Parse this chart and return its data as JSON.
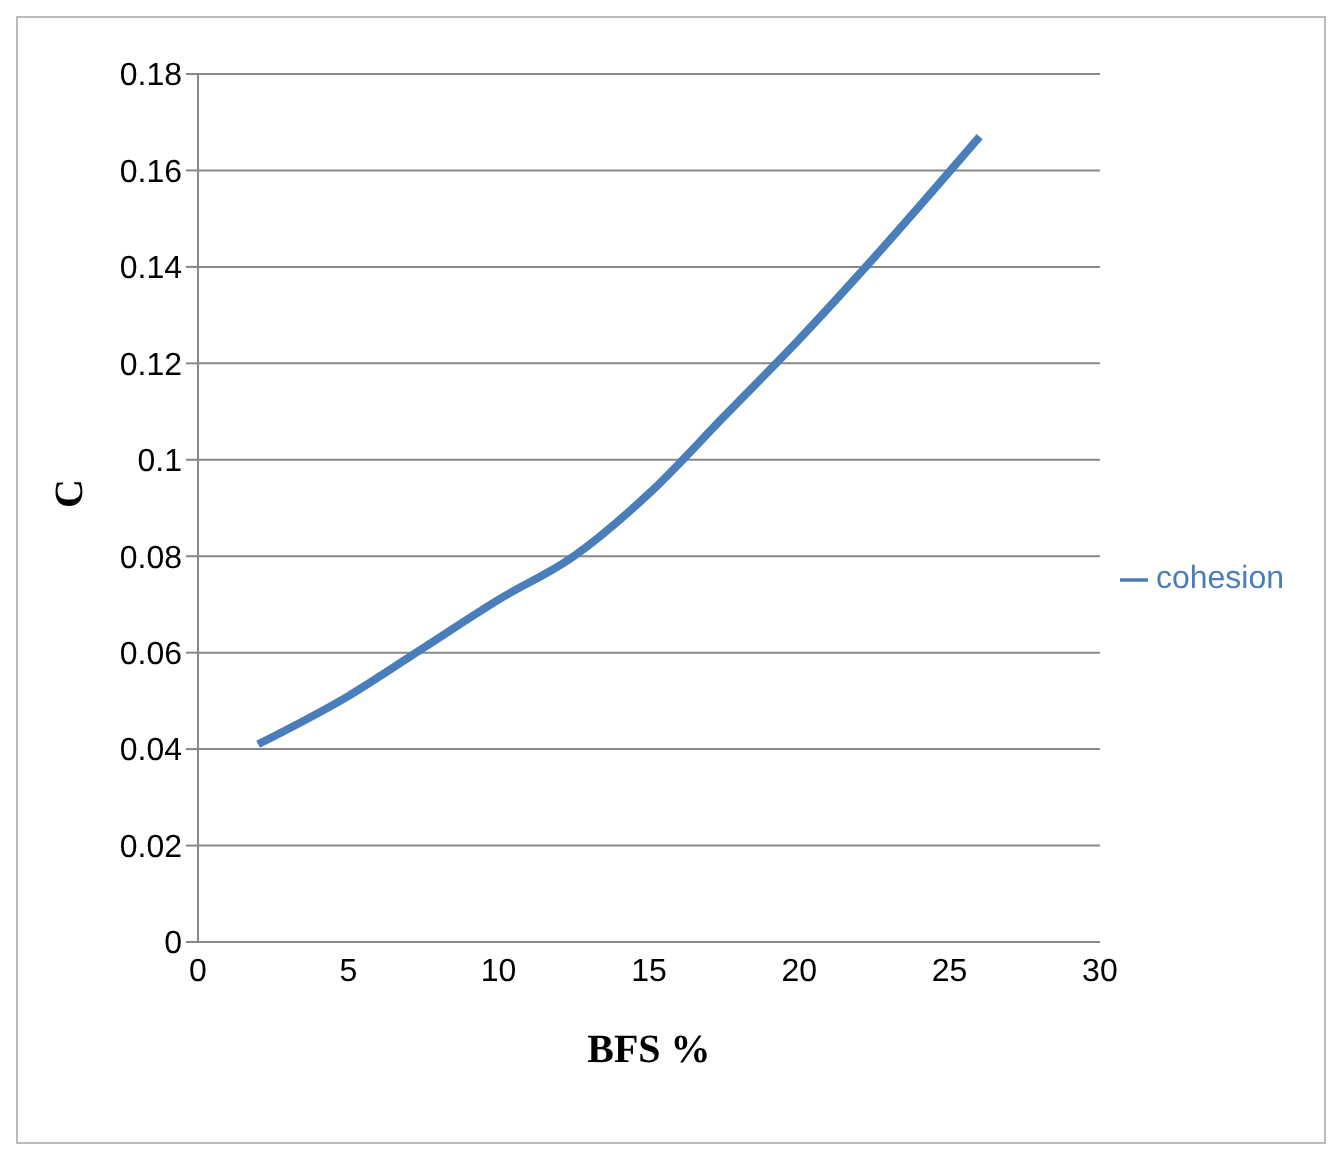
{
  "chart_data": {
    "type": "line",
    "xlabel": "BFS %",
    "ylabel": "C",
    "x": [
      2,
      5,
      7.5,
      10,
      12.5,
      15,
      17.5,
      20,
      22.5,
      26
    ],
    "series": [
      {
        "name": "cohesion",
        "color": "#4a7ebb",
        "values": [
          0.041,
          0.051,
          0.061,
          0.071,
          0.08,
          0.093,
          0.109,
          0.125,
          0.142,
          0.167
        ]
      }
    ],
    "xlim": [
      0,
      30
    ],
    "xticks": [
      0,
      5,
      10,
      15,
      20,
      25,
      30
    ],
    "ylim": [
      0,
      0.18
    ],
    "yticks": [
      0,
      0.02,
      0.04,
      0.06,
      0.08,
      0.1,
      0.12,
      0.14,
      0.16,
      0.18
    ],
    "grid": "y",
    "legend": "right",
    "marker": "none",
    "line_style": "solid"
  }
}
